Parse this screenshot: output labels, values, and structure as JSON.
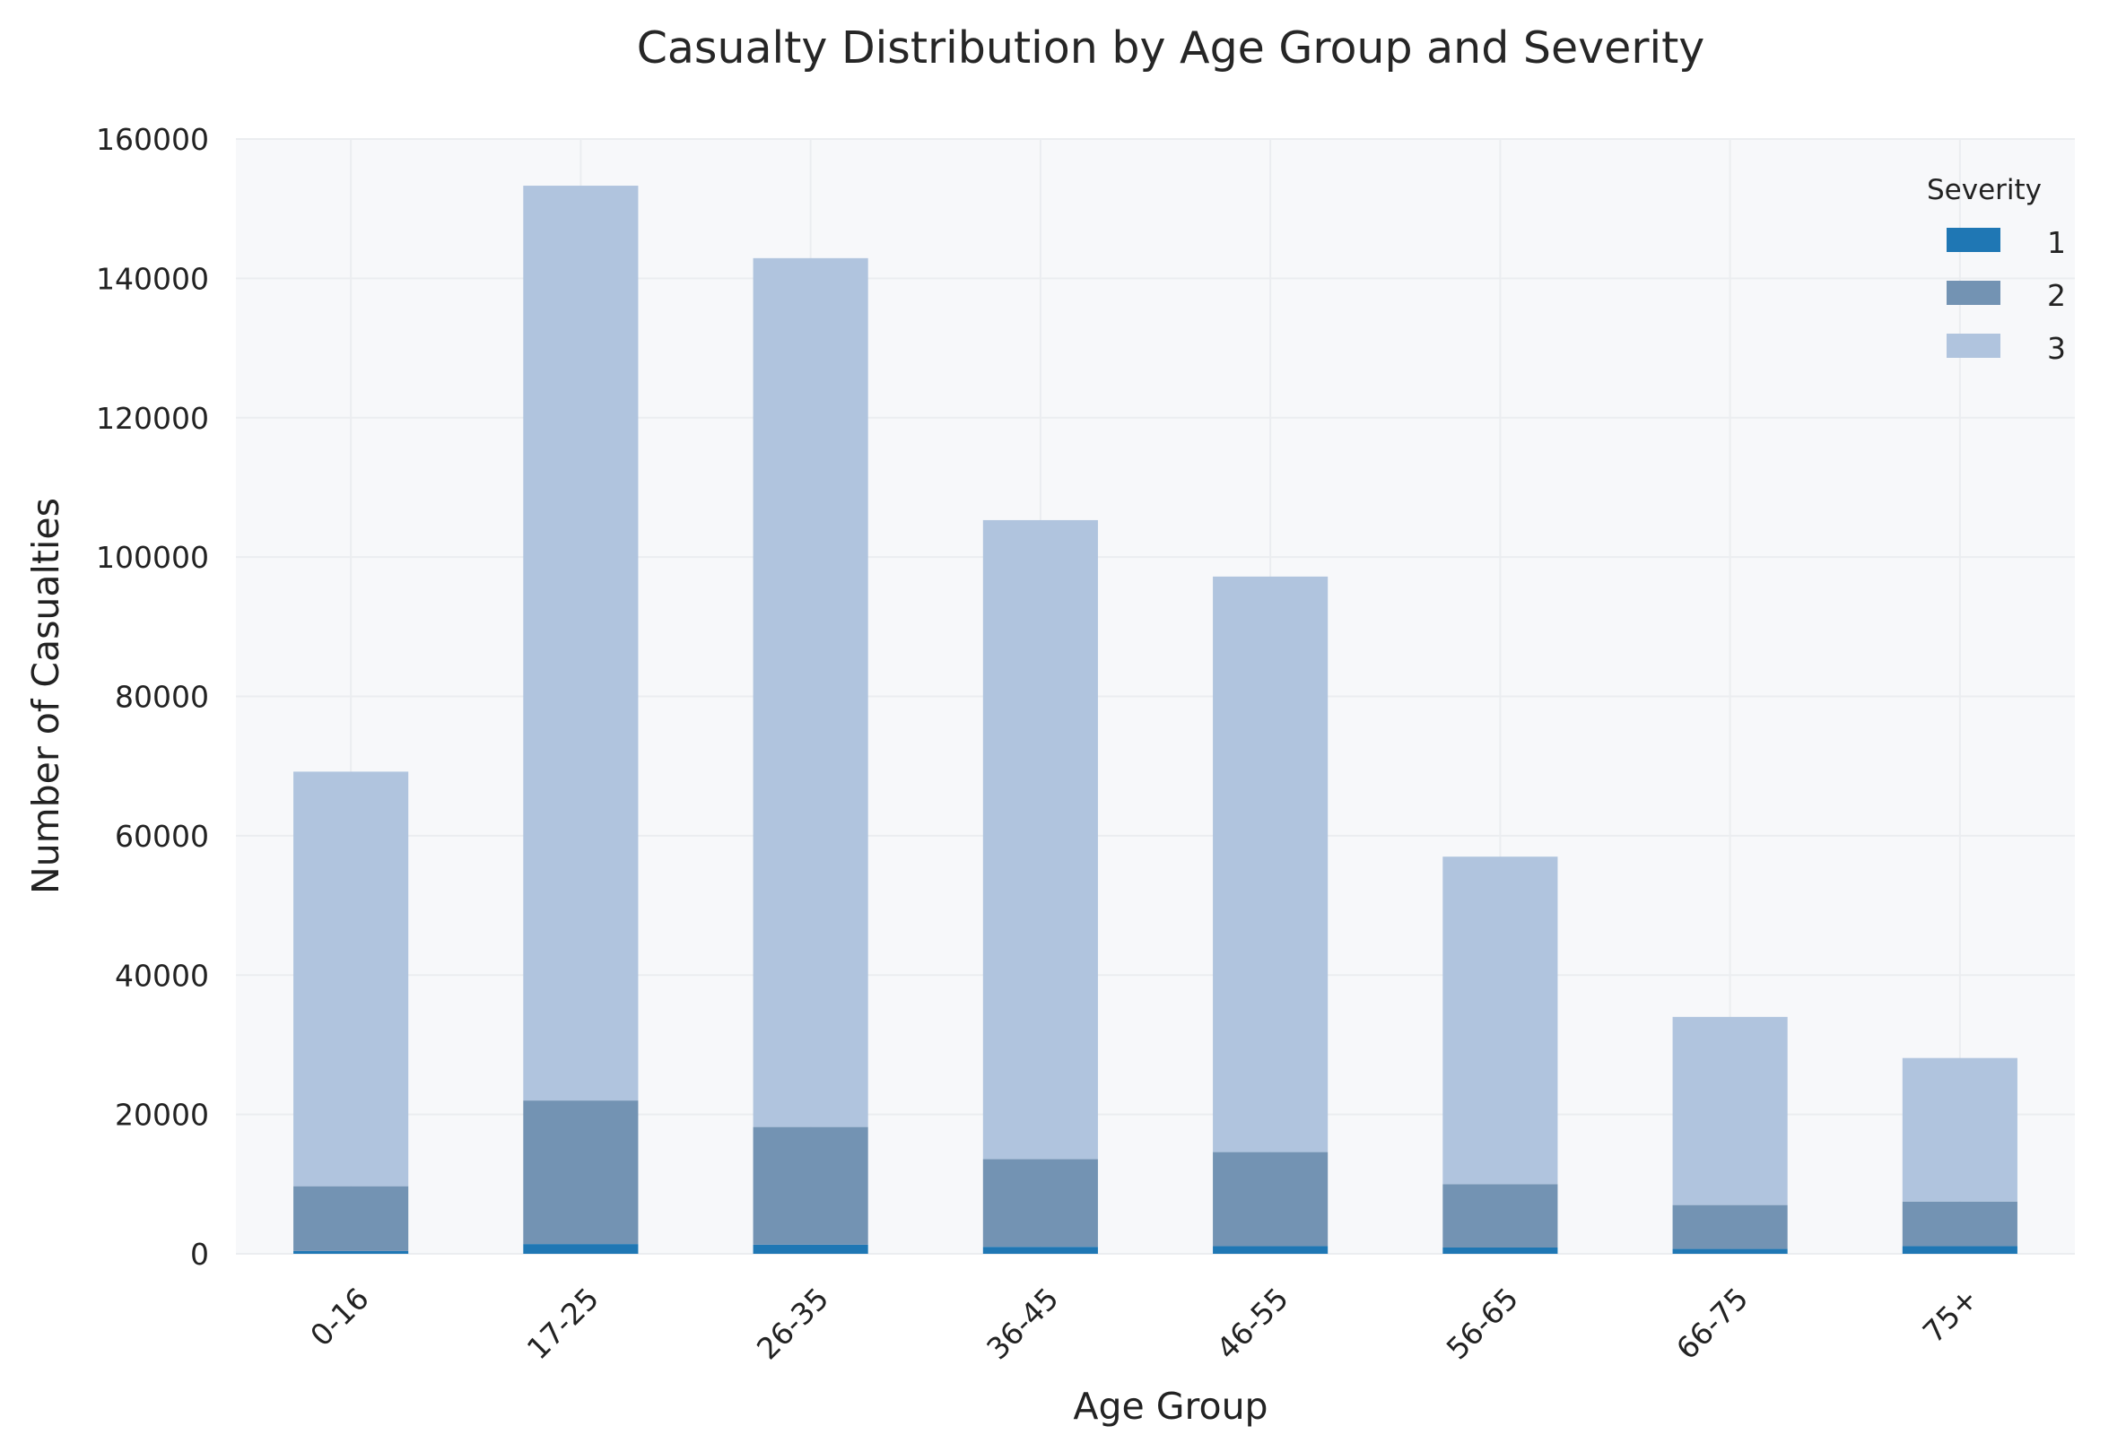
{
  "chart_data": {
    "type": "bar",
    "stacked": true,
    "title": "Casualty Distribution by Age Group and Severity",
    "xlabel": "Age Group",
    "ylabel": "Number of Casualties",
    "categories": [
      "0-16",
      "17-25",
      "26-35",
      "36-45",
      "46-55",
      "56-65",
      "66-75",
      "75+"
    ],
    "ylim": [
      0,
      160000
    ],
    "yticks": [
      "0",
      "20000",
      "40000",
      "60000",
      "80000",
      "100000",
      "120000",
      "140000",
      "160000"
    ],
    "grid": true,
    "legend": {
      "title": "Severity",
      "position": "top-right"
    },
    "series": [
      {
        "name": "1",
        "color": "#1f77b4",
        "values": [
          400,
          1400,
          1300,
          1000,
          1100,
          900,
          700,
          1100
        ]
      },
      {
        "name": "2",
        "color": "#7393b3",
        "values": [
          9300,
          20600,
          16900,
          12600,
          13500,
          9100,
          6300,
          6400
        ]
      },
      {
        "name": "3",
        "color": "#b0c4de",
        "values": [
          59500,
          131300,
          124700,
          91700,
          82600,
          47000,
          27000,
          20600
        ]
      }
    ]
  }
}
